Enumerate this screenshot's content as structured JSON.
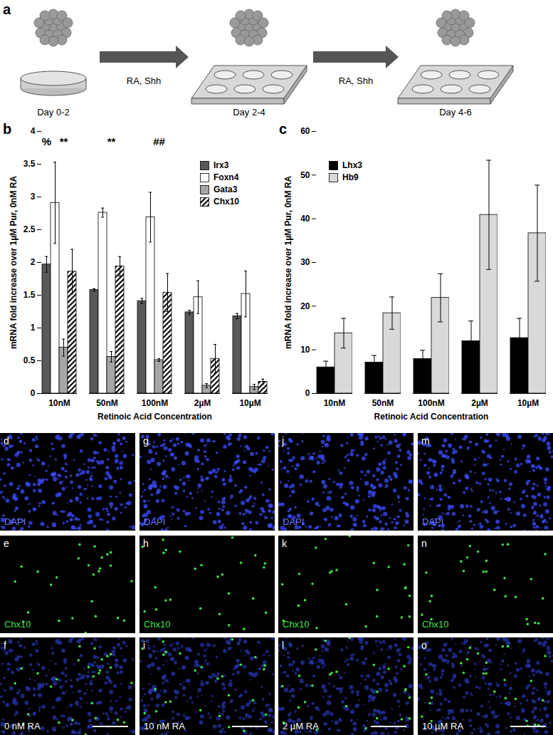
{
  "panel_a": {
    "label": "a",
    "steps": [
      "Day 0-2",
      "Day 2-4",
      "Day 4-6"
    ],
    "transitions": [
      "RA, Shh",
      "RA, Shh"
    ]
  },
  "chart_data": [
    {
      "panel": "b",
      "type": "bar",
      "categories": [
        "10nM",
        "50nM",
        "100nM",
        "2µM",
        "10µM"
      ],
      "xlabel": "Retinoic Acid Concentration",
      "ylabel": "mRNA fold increase over 1µM Pur, 0nM RA",
      "ylim": [
        0,
        4
      ],
      "yticks": [
        0,
        0.5,
        1,
        1.5,
        2,
        2.5,
        3,
        3.5,
        4
      ],
      "legend": "top-right",
      "series": [
        {
          "name": "Irx3",
          "color": "#595959",
          "values": [
            1.97,
            1.58,
            1.41,
            1.24,
            1.18
          ],
          "errors": [
            0.12,
            0.02,
            0.04,
            0.03,
            0.04
          ]
        },
        {
          "name": "Foxn4",
          "color": "#ffffff",
          "values": [
            2.91,
            2.76,
            2.69,
            1.47,
            1.52
          ],
          "errors": [
            0.62,
            0.07,
            0.38,
            0.25,
            0.35
          ]
        },
        {
          "name": "Gata3",
          "color": "#a6a6a6",
          "values": [
            0.7,
            0.56,
            0.51,
            0.12,
            0.1
          ],
          "errors": [
            0.13,
            0.08,
            0.02,
            0.03,
            0.04
          ]
        },
        {
          "name": "Chx10",
          "color": "#000000",
          "line_style": "hatched",
          "values": [
            1.86,
            1.94,
            1.54,
            0.53,
            0.18
          ],
          "errors": [
            0.34,
            0.15,
            0.29,
            0.22,
            0.04
          ]
        }
      ],
      "annotations": [
        {
          "text": "%",
          "category": "10nM",
          "series": "Irx3"
        },
        {
          "text": "**",
          "category": "10nM",
          "series": "Gata3"
        },
        {
          "text": "**",
          "category": "50nM",
          "series": "Gata3"
        },
        {
          "text": "##",
          "category": "100nM",
          "series": "Gata3"
        }
      ]
    },
    {
      "panel": "c",
      "type": "bar",
      "categories": [
        "10nM",
        "50nM",
        "100nM",
        "2µM",
        "10µM"
      ],
      "xlabel": "Retinoic Acid Concentration",
      "ylabel": "mRNA fold increase over 1µM Pur, 0nM RA",
      "ylim": [
        0,
        60
      ],
      "yticks": [
        0,
        10,
        20,
        30,
        40,
        50,
        60
      ],
      "legend": "top-left",
      "series": [
        {
          "name": "Lhx3",
          "color": "#000000",
          "values": [
            6.0,
            7.1,
            7.9,
            12.0,
            12.7
          ],
          "errors": [
            1.4,
            1.6,
            2.0,
            4.6,
            4.5
          ]
        },
        {
          "name": "Hb9",
          "color": "#d9d9d9",
          "values": [
            13.8,
            18.4,
            21.9,
            40.9,
            36.7
          ],
          "errors": [
            3.4,
            3.7,
            5.5,
            12.5,
            11.0
          ]
        }
      ],
      "annotations": []
    }
  ],
  "images": {
    "channels": [
      "DAPI",
      "Chx10"
    ],
    "columns": [
      {
        "panels": [
          "d",
          "e",
          "f"
        ],
        "label": "0 nM RA"
      },
      {
        "panels": [
          "g",
          "h",
          "i"
        ],
        "label": "10 nM RA"
      },
      {
        "panels": [
          "j",
          "k",
          "l"
        ],
        "label": "2 µM RA"
      },
      {
        "panels": [
          "m",
          "n",
          "o"
        ],
        "label": "10 µM RA"
      }
    ]
  }
}
